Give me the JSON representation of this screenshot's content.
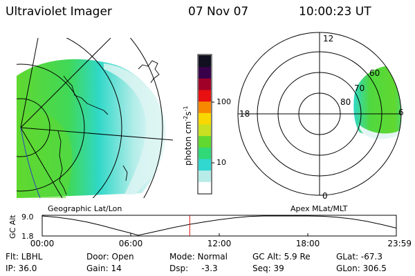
{
  "header": {
    "instrument": "Ultraviolet Imager",
    "date": "07 Nov 07",
    "time": "10:00:23 UT"
  },
  "colorbar": {
    "unit_label": "photon cm",
    "unit_sup1": "-2",
    "unit_mid": "s",
    "unit_sup2": "-1",
    "ticks": [
      {
        "label": "100",
        "value": 100
      },
      {
        "label": "10",
        "value": 10
      }
    ],
    "colors": [
      "#ffffff",
      "#b8ece8",
      "#30d8d0",
      "#30d878",
      "#60d830",
      "#c8e020",
      "#f8d800",
      "#f88800",
      "#e81010",
      "#a00028",
      "#38004a",
      "#101020"
    ]
  },
  "panels": {
    "left_label": "Geographic Lat/Lon",
    "right_label": "Apex  MLat/MLT"
  },
  "polar": {
    "mlt_labels": {
      "top": "12",
      "left": "18",
      "right": "6",
      "bottom": "0"
    },
    "lat_labels": [
      "60",
      "70",
      "80"
    ]
  },
  "chart_data": {
    "type": "line",
    "title": "",
    "ylabel": "GC Alt",
    "yticks": [
      "9.0",
      "1.8"
    ],
    "ylim": [
      1.8,
      9.0
    ],
    "xlim": [
      0,
      24
    ],
    "xticks": [
      "00:00",
      "06:00",
      "12:00",
      "18:00",
      "23:59"
    ],
    "current_time_marker": 10.0,
    "series": [
      {
        "values": [
          [
            0,
            9.0
          ],
          [
            1,
            8.5
          ],
          [
            2,
            7.8
          ],
          [
            3,
            6.8
          ],
          [
            4,
            5.5
          ],
          [
            5,
            4.0
          ],
          [
            6,
            2.6
          ],
          [
            6.5,
            1.8
          ],
          [
            7,
            2.4
          ],
          [
            8,
            3.6
          ],
          [
            9,
            4.8
          ],
          [
            10,
            5.9
          ],
          [
            11,
            6.8
          ],
          [
            12,
            7.6
          ],
          [
            13,
            8.3
          ],
          [
            14,
            8.8
          ],
          [
            15,
            9.1
          ],
          [
            16,
            9.3
          ],
          [
            17,
            9.3
          ],
          [
            18,
            9.2
          ],
          [
            19,
            8.9
          ],
          [
            20,
            8.5
          ],
          [
            21,
            7.9
          ],
          [
            22,
            7.0
          ],
          [
            23,
            5.8
          ],
          [
            24,
            4.5
          ]
        ]
      }
    ]
  },
  "status": {
    "filter": "Flt: LBHL",
    "ip": "IP: 36.0",
    "door": "Door: Open",
    "gain": "Gain: 14",
    "mode": "Mode: Normal",
    "dsp": "Dsp:     -3.3",
    "gc_alt": "GC Alt: 5.9 Re",
    "seq": "Seq: 39",
    "glat": "GLat: -67.3",
    "glon": "GLon: 306.5"
  }
}
